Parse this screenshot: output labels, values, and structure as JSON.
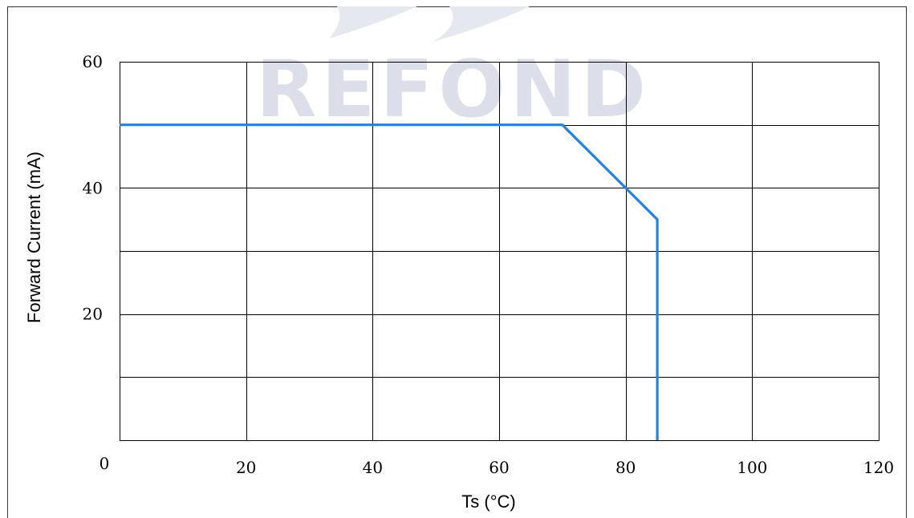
{
  "watermark": {
    "text": "REFOND",
    "color": "#dcdfea"
  },
  "chart_data": {
    "type": "line",
    "xlabel": "Ts (°C)",
    "ylabel": "Forward Current (mA)",
    "xlim": [
      0,
      120
    ],
    "ylim": [
      0,
      60
    ],
    "x_ticks": [
      0,
      20,
      40,
      60,
      80,
      100,
      120
    ],
    "y_ticks": [
      20,
      40,
      60
    ],
    "x_gridlines": [
      20,
      40,
      60,
      80,
      100,
      120
    ],
    "y_gridlines": [
      10,
      20,
      30,
      40,
      50,
      60
    ],
    "grid": true,
    "legend": "none",
    "series": [
      {
        "color": "#1f82e6",
        "points": [
          {
            "x": 0,
            "y": 50
          },
          {
            "x": 70,
            "y": 50
          },
          {
            "x": 85,
            "y": 35
          },
          {
            "x": 85,
            "y": 0
          }
        ]
      }
    ]
  }
}
